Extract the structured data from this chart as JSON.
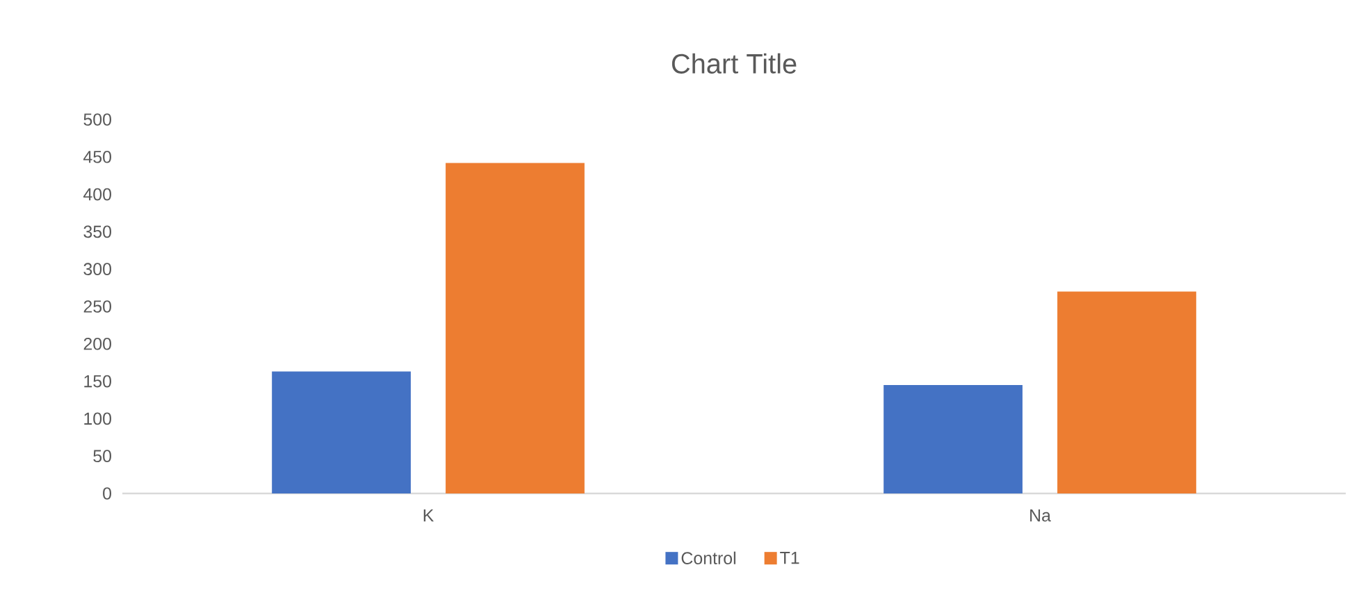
{
  "chart_data": {
    "type": "bar",
    "title": "Chart Title",
    "categories": [
      "K",
      "Na"
    ],
    "series": [
      {
        "name": "Control",
        "color": "#4472c4",
        "values": [
          163,
          145
        ]
      },
      {
        "name": "T1",
        "color": "#ed7d31",
        "values": [
          442,
          270
        ]
      }
    ],
    "ylim": [
      0,
      500
    ],
    "yticks": [
      0,
      50,
      100,
      150,
      200,
      250,
      300,
      350,
      400,
      450,
      500
    ],
    "legend": "bottom"
  }
}
